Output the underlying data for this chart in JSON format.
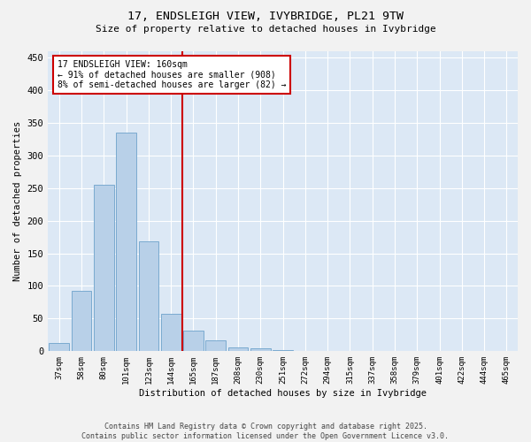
{
  "title": "17, ENDSLEIGH VIEW, IVYBRIDGE, PL21 9TW",
  "subtitle": "Size of property relative to detached houses in Ivybridge",
  "xlabel": "Distribution of detached houses by size in Ivybridge",
  "ylabel": "Number of detached properties",
  "bar_labels": [
    "37sqm",
    "58sqm",
    "80sqm",
    "101sqm",
    "123sqm",
    "144sqm",
    "165sqm",
    "187sqm",
    "208sqm",
    "230sqm",
    "251sqm",
    "272sqm",
    "294sqm",
    "315sqm",
    "337sqm",
    "358sqm",
    "379sqm",
    "401sqm",
    "422sqm",
    "444sqm",
    "465sqm"
  ],
  "bar_values": [
    13,
    93,
    255,
    335,
    168,
    57,
    32,
    17,
    6,
    4,
    2,
    1,
    1,
    0,
    0,
    0,
    0,
    0,
    0,
    0,
    0
  ],
  "bar_color": "#b8d0e8",
  "bar_edgecolor": "#7aaad0",
  "vline_color": "#cc0000",
  "annotation_box_color": "#cc0000",
  "annotation_line1": "17 ENDSLEIGH VIEW: 160sqm",
  "annotation_line2": "← 91% of detached houses are smaller (908)",
  "annotation_line3": "8% of semi-detached houses are larger (82) →",
  "vline_index": 6,
  "ylim": [
    0,
    460
  ],
  "yticks": [
    0,
    50,
    100,
    150,
    200,
    250,
    300,
    350,
    400,
    450
  ],
  "background_color": "#dce8f5",
  "grid_color": "#ffffff",
  "fig_background": "#f2f2f2",
  "footer_line1": "Contains HM Land Registry data © Crown copyright and database right 2025.",
  "footer_line2": "Contains public sector information licensed under the Open Government Licence v3.0."
}
